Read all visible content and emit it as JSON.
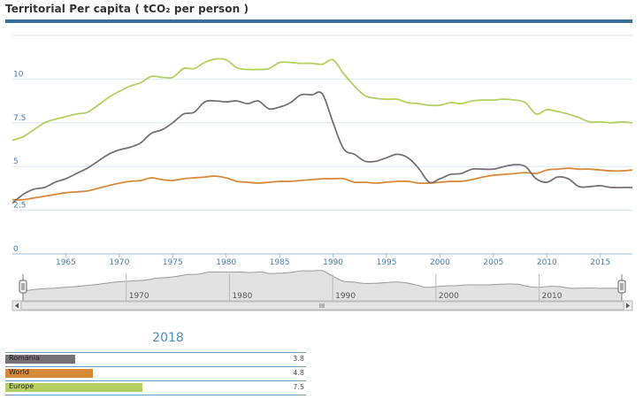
{
  "header": {
    "title": "Territorial Per capita ( tCO₂ per person )"
  },
  "chart_data": {
    "type": "line",
    "title": "Territorial Per capita ( tCO₂ per person )",
    "xlabel": "",
    "ylabel": "",
    "xlim": [
      1960,
      2018
    ],
    "ylim": [
      0,
      12.5
    ],
    "x_ticks": [
      "1965",
      "1970",
      "1975",
      "1980",
      "1985",
      "1990",
      "1995",
      "2000",
      "2005",
      "2010",
      "2015"
    ],
    "y_ticks": [
      "0",
      "2.5",
      "5",
      "7.5",
      "10"
    ],
    "grid": true,
    "x": [
      1960,
      1961,
      1962,
      1963,
      1964,
      1965,
      1966,
      1967,
      1968,
      1969,
      1970,
      1971,
      1972,
      1973,
      1974,
      1975,
      1976,
      1977,
      1978,
      1979,
      1980,
      1981,
      1982,
      1983,
      1984,
      1985,
      1986,
      1987,
      1988,
      1989,
      1990,
      1991,
      1992,
      1993,
      1994,
      1995,
      1996,
      1997,
      1998,
      1999,
      2000,
      2001,
      2002,
      2003,
      2004,
      2005,
      2006,
      2007,
      2008,
      2009,
      2010,
      2011,
      2012,
      2013,
      2014,
      2015,
      2016,
      2017,
      2018
    ],
    "series": [
      {
        "name": "Romania",
        "color": "#787077",
        "values": [
          2.9,
          3.4,
          3.7,
          3.8,
          4.1,
          4.3,
          4.6,
          4.9,
          5.3,
          5.7,
          5.95,
          6.1,
          6.35,
          6.9,
          7.1,
          7.5,
          8.0,
          8.1,
          8.7,
          8.75,
          8.7,
          8.75,
          8.6,
          8.75,
          8.3,
          8.4,
          8.65,
          9.1,
          9.1,
          9.15,
          7.5,
          6.0,
          5.7,
          5.3,
          5.3,
          5.5,
          5.7,
          5.5,
          4.9,
          4.1,
          4.3,
          4.55,
          4.6,
          4.85,
          4.85,
          4.85,
          5.0,
          5.1,
          5.0,
          4.3,
          4.1,
          4.4,
          4.3,
          3.85,
          3.85,
          3.9,
          3.8,
          3.8,
          3.8
        ]
      },
      {
        "name": "World",
        "color": "#d9893a",
        "values": [
          3.1,
          3.1,
          3.2,
          3.3,
          3.4,
          3.5,
          3.55,
          3.6,
          3.75,
          3.9,
          4.05,
          4.15,
          4.2,
          4.35,
          4.25,
          4.2,
          4.3,
          4.35,
          4.4,
          4.45,
          4.35,
          4.15,
          4.1,
          4.05,
          4.1,
          4.15,
          4.15,
          4.2,
          4.25,
          4.3,
          4.3,
          4.3,
          4.1,
          4.1,
          4.05,
          4.1,
          4.15,
          4.15,
          4.05,
          4.05,
          4.1,
          4.15,
          4.15,
          4.25,
          4.4,
          4.5,
          4.55,
          4.6,
          4.65,
          4.6,
          4.8,
          4.85,
          4.9,
          4.85,
          4.85,
          4.8,
          4.75,
          4.75,
          4.8
        ]
      },
      {
        "name": "Europe",
        "color": "#b5cf62",
        "values": [
          6.5,
          6.7,
          7.1,
          7.5,
          7.7,
          7.85,
          8.0,
          8.1,
          8.5,
          8.95,
          9.3,
          9.6,
          9.8,
          10.15,
          10.1,
          10.1,
          10.6,
          10.6,
          10.95,
          11.15,
          11.1,
          10.65,
          10.55,
          10.55,
          10.6,
          10.95,
          10.95,
          10.9,
          10.9,
          10.85,
          11.1,
          10.3,
          9.6,
          9.05,
          8.9,
          8.85,
          8.85,
          8.65,
          8.6,
          8.5,
          8.5,
          8.65,
          8.6,
          8.75,
          8.8,
          8.8,
          8.85,
          8.8,
          8.65,
          8.0,
          8.25,
          8.15,
          8.0,
          7.8,
          7.55,
          7.55,
          7.5,
          7.55,
          7.5
        ]
      }
    ]
  },
  "navigator": {
    "x_ticks": [
      "1970",
      "1980",
      "1990",
      "2000",
      "2010"
    ],
    "scroll_center_label": "III"
  },
  "legend": {
    "year": "2018",
    "max": 12.5,
    "items": [
      {
        "name": "Romania",
        "value": "3.8",
        "amount": 3.8,
        "color": "#787077"
      },
      {
        "name": "World",
        "value": "4.8",
        "amount": 4.8,
        "color": "#d9893a"
      },
      {
        "name": "Europe",
        "value": "7.5",
        "amount": 7.5,
        "color": "#b5cf62"
      }
    ]
  }
}
